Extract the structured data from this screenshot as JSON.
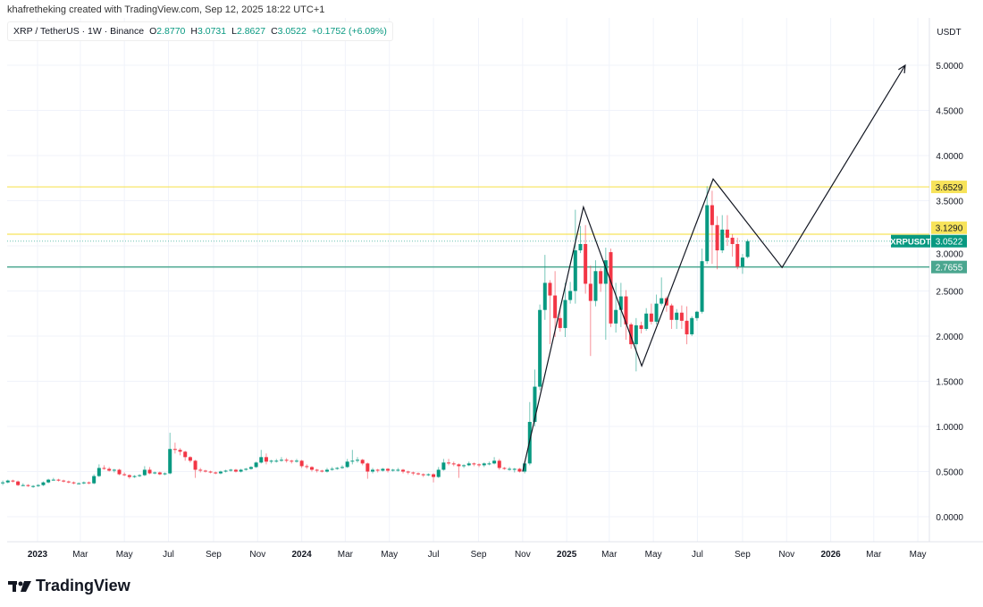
{
  "credit": "khafretheking created with TradingView.com, Sep 12, 2025 18:22 UTC+1",
  "legend": {
    "symbol": "XRP / TetherUS · 1W · Binance",
    "o_label": "O",
    "o": "2.8770",
    "h_label": "H",
    "h": "3.0731",
    "l_label": "L",
    "l": "2.8627",
    "c_label": "C",
    "c": "3.0522",
    "change": "+0.1752 (+6.09%)"
  },
  "logo": {
    "text": "TradingView",
    "icon": "tradingview-logo-icon"
  },
  "colors": {
    "up": "#089981",
    "down": "#f23645",
    "yellow": "#f7e35a",
    "green_line": "#4aa68f",
    "grid": "#f0f3fa"
  },
  "chart_data": {
    "type": "candlestick",
    "title": "XRP / TetherUS · 1W · Binance",
    "currency_label": "USDT",
    "ylim": [
      -0.3,
      5.4
    ],
    "y_ticks": [
      "0.0000",
      "0.5000",
      "1.0000",
      "1.5000",
      "2.0000",
      "2.5000",
      "3.0000",
      "3.5000",
      "4.0000",
      "4.5000",
      "5.0000"
    ],
    "x_ticks": [
      {
        "label": "2023",
        "week": 6.86
      },
      {
        "label": "Mar",
        "week": 15.3
      },
      {
        "label": "May",
        "week": 24
      },
      {
        "label": "Jul",
        "week": 32.7
      },
      {
        "label": "Sep",
        "week": 41.6
      },
      {
        "label": "Nov",
        "week": 50.3
      },
      {
        "label": "2024",
        "week": 59
      },
      {
        "label": "Mar",
        "week": 67.6
      },
      {
        "label": "May",
        "week": 76.3
      },
      {
        "label": "Jul",
        "week": 85
      },
      {
        "label": "Sep",
        "week": 93.9
      },
      {
        "label": "Nov",
        "week": 102.6
      },
      {
        "label": "2025",
        "week": 111.3
      },
      {
        "label": "Mar",
        "week": 119.7
      },
      {
        "label": "May",
        "week": 128.4
      },
      {
        "label": "Jul",
        "week": 137.1
      },
      {
        "label": "Sep",
        "week": 146
      },
      {
        "label": "Nov",
        "week": 154.7
      },
      {
        "label": "2026",
        "week": 163.4
      },
      {
        "label": "Mar",
        "week": 171.9
      },
      {
        "label": "May",
        "week": 180.6
      }
    ],
    "candles_ohlc": [
      [
        0.37,
        0.4,
        0.35,
        0.38
      ],
      [
        0.38,
        0.41,
        0.37,
        0.4
      ],
      [
        0.4,
        0.41,
        0.38,
        0.39
      ],
      [
        0.39,
        0.4,
        0.34,
        0.35
      ],
      [
        0.35,
        0.37,
        0.34,
        0.35
      ],
      [
        0.35,
        0.36,
        0.33,
        0.34
      ],
      [
        0.34,
        0.35,
        0.32,
        0.34
      ],
      [
        0.34,
        0.36,
        0.33,
        0.35
      ],
      [
        0.35,
        0.39,
        0.34,
        0.38
      ],
      [
        0.38,
        0.42,
        0.37,
        0.41
      ],
      [
        0.41,
        0.43,
        0.4,
        0.41
      ],
      [
        0.41,
        0.42,
        0.39,
        0.4
      ],
      [
        0.4,
        0.41,
        0.38,
        0.39
      ],
      [
        0.39,
        0.4,
        0.37,
        0.38
      ],
      [
        0.38,
        0.39,
        0.36,
        0.37
      ],
      [
        0.37,
        0.38,
        0.36,
        0.37
      ],
      [
        0.37,
        0.39,
        0.36,
        0.38
      ],
      [
        0.38,
        0.39,
        0.36,
        0.37
      ],
      [
        0.37,
        0.47,
        0.36,
        0.45
      ],
      [
        0.45,
        0.58,
        0.44,
        0.54
      ],
      [
        0.54,
        0.57,
        0.52,
        0.53
      ],
      [
        0.53,
        0.55,
        0.5,
        0.51
      ],
      [
        0.51,
        0.53,
        0.49,
        0.52
      ],
      [
        0.52,
        0.53,
        0.46,
        0.47
      ],
      [
        0.47,
        0.49,
        0.45,
        0.46
      ],
      [
        0.46,
        0.47,
        0.42,
        0.44
      ],
      [
        0.44,
        0.46,
        0.43,
        0.45
      ],
      [
        0.45,
        0.47,
        0.44,
        0.46
      ],
      [
        0.46,
        0.56,
        0.45,
        0.52
      ],
      [
        0.52,
        0.55,
        0.47,
        0.48
      ],
      [
        0.48,
        0.5,
        0.47,
        0.49
      ],
      [
        0.49,
        0.5,
        0.46,
        0.47
      ],
      [
        0.47,
        0.49,
        0.46,
        0.48
      ],
      [
        0.48,
        0.93,
        0.47,
        0.75
      ],
      [
        0.75,
        0.82,
        0.7,
        0.74
      ],
      [
        0.74,
        0.76,
        0.68,
        0.72
      ],
      [
        0.72,
        0.73,
        0.62,
        0.66
      ],
      [
        0.66,
        0.67,
        0.6,
        0.62
      ],
      [
        0.62,
        0.63,
        0.43,
        0.52
      ],
      [
        0.52,
        0.54,
        0.49,
        0.51
      ],
      [
        0.51,
        0.52,
        0.49,
        0.5
      ],
      [
        0.5,
        0.51,
        0.48,
        0.49
      ],
      [
        0.49,
        0.5,
        0.47,
        0.48
      ],
      [
        0.48,
        0.51,
        0.47,
        0.5
      ],
      [
        0.5,
        0.52,
        0.49,
        0.51
      ],
      [
        0.51,
        0.53,
        0.5,
        0.52
      ],
      [
        0.52,
        0.53,
        0.49,
        0.5
      ],
      [
        0.5,
        0.53,
        0.49,
        0.52
      ],
      [
        0.52,
        0.54,
        0.51,
        0.53
      ],
      [
        0.53,
        0.56,
        0.52,
        0.55
      ],
      [
        0.55,
        0.61,
        0.54,
        0.6
      ],
      [
        0.6,
        0.74,
        0.59,
        0.66
      ],
      [
        0.66,
        0.7,
        0.58,
        0.61
      ],
      [
        0.61,
        0.63,
        0.59,
        0.62
      ],
      [
        0.62,
        0.64,
        0.6,
        0.62
      ],
      [
        0.62,
        0.66,
        0.61,
        0.63
      ],
      [
        0.63,
        0.65,
        0.6,
        0.62
      ],
      [
        0.62,
        0.63,
        0.59,
        0.61
      ],
      [
        0.61,
        0.64,
        0.6,
        0.62
      ],
      [
        0.62,
        0.63,
        0.54,
        0.56
      ],
      [
        0.56,
        0.58,
        0.53,
        0.55
      ],
      [
        0.55,
        0.56,
        0.5,
        0.52
      ],
      [
        0.52,
        0.53,
        0.49,
        0.51
      ],
      [
        0.51,
        0.52,
        0.49,
        0.5
      ],
      [
        0.5,
        0.54,
        0.49,
        0.52
      ],
      [
        0.52,
        0.55,
        0.51,
        0.53
      ],
      [
        0.53,
        0.55,
        0.52,
        0.54
      ],
      [
        0.54,
        0.57,
        0.53,
        0.55
      ],
      [
        0.55,
        0.64,
        0.54,
        0.61
      ],
      [
        0.61,
        0.74,
        0.58,
        0.62
      ],
      [
        0.62,
        0.66,
        0.6,
        0.63
      ],
      [
        0.63,
        0.64,
        0.57,
        0.59
      ],
      [
        0.59,
        0.6,
        0.42,
        0.5
      ],
      [
        0.5,
        0.54,
        0.48,
        0.52
      ],
      [
        0.52,
        0.53,
        0.49,
        0.51
      ],
      [
        0.51,
        0.54,
        0.5,
        0.53
      ],
      [
        0.53,
        0.54,
        0.49,
        0.51
      ],
      [
        0.51,
        0.53,
        0.5,
        0.52
      ],
      [
        0.52,
        0.54,
        0.5,
        0.52
      ],
      [
        0.52,
        0.53,
        0.48,
        0.5
      ],
      [
        0.5,
        0.51,
        0.47,
        0.49
      ],
      [
        0.49,
        0.5,
        0.46,
        0.48
      ],
      [
        0.48,
        0.49,
        0.46,
        0.47
      ],
      [
        0.47,
        0.48,
        0.44,
        0.46
      ],
      [
        0.46,
        0.48,
        0.45,
        0.47
      ],
      [
        0.47,
        0.48,
        0.38,
        0.44
      ],
      [
        0.44,
        0.55,
        0.43,
        0.52
      ],
      [
        0.52,
        0.64,
        0.51,
        0.6
      ],
      [
        0.6,
        0.64,
        0.57,
        0.59
      ],
      [
        0.59,
        0.61,
        0.56,
        0.58
      ],
      [
        0.58,
        0.59,
        0.43,
        0.56
      ],
      [
        0.56,
        0.58,
        0.54,
        0.57
      ],
      [
        0.57,
        0.61,
        0.56,
        0.59
      ],
      [
        0.59,
        0.6,
        0.56,
        0.58
      ],
      [
        0.58,
        0.59,
        0.55,
        0.57
      ],
      [
        0.57,
        0.6,
        0.55,
        0.59
      ],
      [
        0.59,
        0.61,
        0.57,
        0.59
      ],
      [
        0.59,
        0.66,
        0.58,
        0.62
      ],
      [
        0.62,
        0.64,
        0.52,
        0.54
      ],
      [
        0.54,
        0.55,
        0.52,
        0.53
      ],
      [
        0.53,
        0.55,
        0.51,
        0.53
      ],
      [
        0.53,
        0.54,
        0.49,
        0.53
      ],
      [
        0.53,
        0.54,
        0.49,
        0.5
      ],
      [
        0.5,
        0.61,
        0.48,
        0.59
      ],
      [
        0.59,
        1.27,
        0.57,
        1.05
      ],
      [
        1.05,
        1.63,
        1.0,
        1.44
      ],
      [
        1.44,
        2.35,
        1.4,
        2.29
      ],
      [
        2.29,
        2.9,
        2.18,
        2.59
      ],
      [
        2.59,
        2.62,
        1.91,
        2.45
      ],
      [
        2.45,
        2.72,
        1.99,
        2.2
      ],
      [
        2.2,
        2.3,
        2.05,
        2.09
      ],
      [
        2.09,
        2.59,
        1.99,
        2.4
      ],
      [
        2.4,
        2.6,
        2.36,
        2.5
      ],
      [
        2.5,
        3.4,
        2.36,
        2.95
      ],
      [
        2.95,
        3.22,
        2.92,
        3.02
      ],
      [
        3.02,
        3.23,
        2.47,
        2.58
      ],
      [
        2.58,
        2.78,
        1.78,
        2.39
      ],
      [
        2.39,
        2.84,
        2.33,
        2.72
      ],
      [
        2.72,
        2.75,
        2.49,
        2.58
      ],
      [
        2.58,
        2.98,
        1.96,
        2.84
      ],
      [
        2.93,
        2.97,
        2.1,
        2.14
      ],
      [
        2.14,
        2.59,
        2.04,
        2.29
      ],
      [
        2.29,
        2.59,
        2.1,
        2.44
      ],
      [
        2.44,
        2.51,
        1.96,
        2.13
      ],
      [
        2.13,
        2.15,
        1.86,
        1.91
      ],
      [
        1.91,
        2.2,
        1.61,
        2.12
      ],
      [
        2.12,
        2.16,
        2.03,
        2.08
      ],
      [
        2.08,
        2.31,
        2.06,
        2.25
      ],
      [
        2.25,
        2.36,
        2.13,
        2.16
      ],
      [
        2.16,
        2.46,
        2.13,
        2.36
      ],
      [
        2.36,
        2.65,
        2.34,
        2.42
      ],
      [
        2.42,
        2.44,
        2.27,
        2.34
      ],
      [
        2.34,
        2.36,
        2.08,
        2.18
      ],
      [
        2.18,
        2.3,
        2.08,
        2.26
      ],
      [
        2.26,
        2.34,
        2.08,
        2.17
      ],
      [
        2.17,
        2.33,
        1.91,
        2.02
      ],
      [
        2.02,
        2.22,
        2.0,
        2.2
      ],
      [
        2.2,
        2.28,
        2.17,
        2.27
      ],
      [
        2.27,
        2.97,
        2.25,
        2.83
      ],
      [
        2.83,
        3.66,
        2.8,
        3.45
      ],
      [
        3.45,
        3.61,
        2.8,
        3.23
      ],
      [
        3.23,
        3.33,
        2.74,
        2.95
      ],
      [
        2.95,
        3.34,
        2.92,
        3.18
      ],
      [
        3.18,
        3.34,
        3.0,
        3.09
      ],
      [
        3.09,
        3.13,
        2.88,
        3.02
      ],
      [
        3.02,
        3.09,
        2.74,
        2.77
      ],
      [
        2.77,
        2.91,
        2.69,
        2.87
      ],
      [
        2.877,
        3.0731,
        2.8627,
        3.0522
      ]
    ],
    "horizontal_lines": [
      {
        "price": 3.6529,
        "label": "3.6529",
        "color": "yellow"
      },
      {
        "price": 3.129,
        "label": "3.1290",
        "color": "yellow"
      },
      {
        "price": 2.7655,
        "label": "2.7655",
        "color": "green_line"
      }
    ],
    "last_price": {
      "symbol": "XRPUSDT",
      "label": "3.0522",
      "price": 3.0522
    },
    "projection_path": [
      {
        "week": 102.6,
        "price": 0.5
      },
      {
        "week": 114.6,
        "price": 3.43
      },
      {
        "week": 126.1,
        "price": 1.67
      },
      {
        "week": 140.2,
        "price": 3.74
      },
      {
        "week": 153.8,
        "price": 2.76
      },
      {
        "week": 178.1,
        "price": 5.0
      }
    ]
  }
}
